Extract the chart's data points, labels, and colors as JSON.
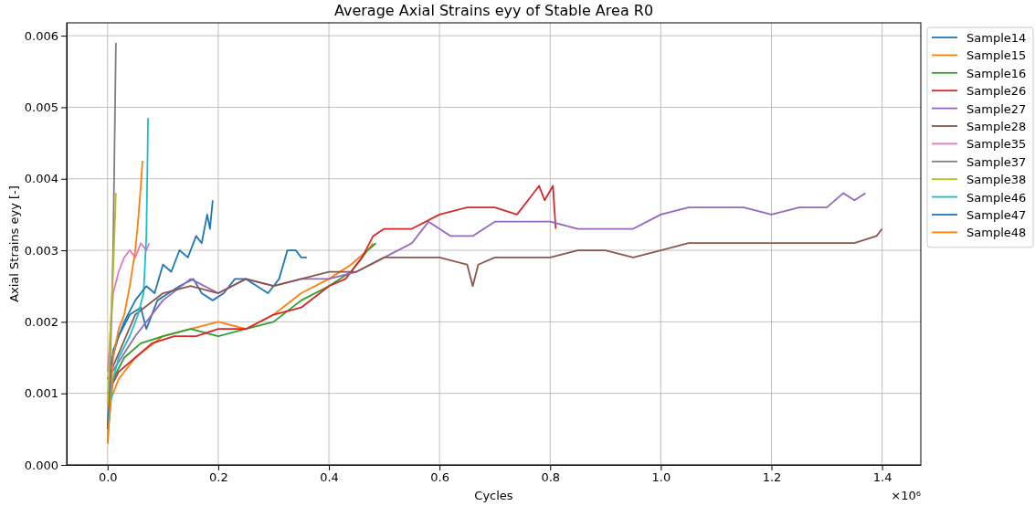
{
  "chart_data": {
    "type": "line",
    "title": "Average Axial Strains eyy of Stable Area R0",
    "xlabel": "Cycles",
    "ylabel": "Axial Strains eyy [-]",
    "annotations": [
      "×10⁶"
    ],
    "xlim": [
      -0.074,
      1.47
    ],
    "xticks": [
      {
        "value": 0,
        "label": "0.0"
      },
      {
        "value": 0.2,
        "label": "0.2"
      },
      {
        "value": 0.4,
        "label": "0.4"
      },
      {
        "value": 0.6,
        "label": "0.6"
      },
      {
        "value": 0.8,
        "label": "0.8"
      },
      {
        "value": 1,
        "label": "1.0"
      },
      {
        "value": 1.2,
        "label": "1.2"
      },
      {
        "value": 1.4,
        "label": "1.4"
      }
    ],
    "ylim": [
      0,
      0.00618
    ],
    "yticks": [
      {
        "value": 0,
        "label": "0.000"
      },
      {
        "value": 0.001,
        "label": "0.001"
      },
      {
        "value": 0.002,
        "label": "0.002"
      },
      {
        "value": 0.003,
        "label": "0.003"
      },
      {
        "value": 0.004,
        "label": "0.004"
      },
      {
        "value": 0.005,
        "label": "0.005"
      },
      {
        "value": 0.006,
        "label": "0.006"
      }
    ],
    "grid": true,
    "legend": "top right",
    "series": [
      {
        "name": "Sample14",
        "color": "#1f77b4",
        "x": [
          0,
          0.005,
          0.02,
          0.04,
          0.06,
          0.07,
          0.09,
          0.11,
          0.13,
          0.155,
          0.17,
          0.19,
          0.21,
          0.23,
          0.25,
          0.27,
          0.29,
          0.31,
          0.325,
          0.34,
          0.35,
          0.36
        ],
        "values": [
          0.0005,
          0.0014,
          0.0018,
          0.0021,
          0.0022,
          0.0019,
          0.0023,
          0.0024,
          0.0025,
          0.0026,
          0.0024,
          0.0023,
          0.0024,
          0.0026,
          0.0026,
          0.0025,
          0.0024,
          0.0026,
          0.003,
          0.003,
          0.0029,
          0.0029
        ]
      },
      {
        "name": "Sample15",
        "color": "#ff7f0e",
        "x": [
          0,
          0.005,
          0.02,
          0.05,
          0.1,
          0.15,
          0.2,
          0.25,
          0.3,
          0.35,
          0.4,
          0.44,
          0.47,
          0.48
        ],
        "values": [
          0.0003,
          0.0009,
          0.0012,
          0.0015,
          0.0018,
          0.0019,
          0.002,
          0.0019,
          0.0021,
          0.0024,
          0.0026,
          0.0028,
          0.003,
          0.0031
        ]
      },
      {
        "name": "Sample16",
        "color": "#2ca02c",
        "x": [
          0,
          0.01,
          0.03,
          0.06,
          0.1,
          0.15,
          0.2,
          0.25,
          0.3,
          0.35,
          0.4,
          0.44,
          0.47,
          0.485
        ],
        "values": [
          0.0008,
          0.0012,
          0.0015,
          0.0017,
          0.0018,
          0.0019,
          0.0018,
          0.0019,
          0.002,
          0.0023,
          0.0025,
          0.0027,
          0.003,
          0.0031
        ]
      },
      {
        "name": "Sample26",
        "color": "#d62728",
        "x": [
          0,
          0.02,
          0.05,
          0.08,
          0.12,
          0.16,
          0.2,
          0.25,
          0.3,
          0.35,
          0.4,
          0.43,
          0.46,
          0.48,
          0.5,
          0.55,
          0.6,
          0.65,
          0.7,
          0.74,
          0.76,
          0.78,
          0.79,
          0.805,
          0.81
        ],
        "values": [
          0.001,
          0.0013,
          0.0015,
          0.0017,
          0.0018,
          0.0018,
          0.0019,
          0.0019,
          0.0021,
          0.0022,
          0.0025,
          0.0026,
          0.0029,
          0.0032,
          0.0033,
          0.0033,
          0.0035,
          0.0036,
          0.0036,
          0.0035,
          0.0037,
          0.0039,
          0.0037,
          0.0039,
          0.0033
        ]
      },
      {
        "name": "Sample27",
        "color": "#9467bd",
        "x": [
          0,
          0.05,
          0.1,
          0.15,
          0.2,
          0.25,
          0.3,
          0.35,
          0.4,
          0.45,
          0.5,
          0.55,
          0.58,
          0.62,
          0.66,
          0.7,
          0.75,
          0.8,
          0.85,
          0.9,
          0.95,
          1,
          1.05,
          1.1,
          1.15,
          1.2,
          1.25,
          1.3,
          1.33,
          1.35,
          1.37
        ],
        "values": [
          0.0012,
          0.0018,
          0.0023,
          0.0026,
          0.0024,
          0.0026,
          0.0025,
          0.0026,
          0.0026,
          0.0027,
          0.0029,
          0.0031,
          0.0034,
          0.0032,
          0.0032,
          0.0034,
          0.0034,
          0.0034,
          0.0033,
          0.0033,
          0.0033,
          0.0035,
          0.0036,
          0.0036,
          0.0036,
          0.0035,
          0.0036,
          0.0036,
          0.0038,
          0.0037,
          0.0038
        ]
      },
      {
        "name": "Sample28",
        "color": "#8c564b",
        "x": [
          0,
          0.05,
          0.1,
          0.15,
          0.2,
          0.25,
          0.3,
          0.35,
          0.4,
          0.45,
          0.5,
          0.55,
          0.6,
          0.65,
          0.66,
          0.67,
          0.7,
          0.75,
          0.8,
          0.85,
          0.9,
          0.95,
          1,
          1.05,
          1.1,
          1.15,
          1.2,
          1.25,
          1.3,
          1.35,
          1.39,
          1.4
        ],
        "values": [
          0.0012,
          0.0021,
          0.0024,
          0.0025,
          0.0024,
          0.0026,
          0.0025,
          0.0026,
          0.0027,
          0.0027,
          0.0029,
          0.0029,
          0.0029,
          0.0028,
          0.0025,
          0.0028,
          0.0029,
          0.0029,
          0.0029,
          0.003,
          0.003,
          0.0029,
          0.003,
          0.0031,
          0.0031,
          0.0031,
          0.0031,
          0.0031,
          0.0031,
          0.0031,
          0.0032,
          0.0033
        ]
      },
      {
        "name": "Sample35",
        "color": "#e377c2",
        "x": [
          0,
          0.01,
          0.02,
          0.03,
          0.04,
          0.05,
          0.06,
          0.07,
          0.075
        ],
        "values": [
          0.0013,
          0.0024,
          0.0027,
          0.0029,
          0.003,
          0.0029,
          0.0031,
          0.003,
          0.0031
        ]
      },
      {
        "name": "Sample37",
        "color": "#7f7f7f",
        "x": [
          0,
          0.005,
          0.01,
          0.015
        ],
        "values": [
          0.0005,
          0.0015,
          0.003,
          0.0059
        ]
      },
      {
        "name": "Sample38",
        "color": "#bcbd22",
        "x": [
          0,
          0.005,
          0.01,
          0.015
        ],
        "values": [
          0.0008,
          0.0019,
          0.0027,
          0.0038
        ]
      },
      {
        "name": "Sample46",
        "color": "#17becf",
        "x": [
          0,
          0.01,
          0.02,
          0.04,
          0.055,
          0.065,
          0.07,
          0.072,
          0.073
        ],
        "values": [
          0.0004,
          0.0012,
          0.0015,
          0.0018,
          0.0021,
          0.0024,
          0.0032,
          0.0042,
          0.00485
        ]
      },
      {
        "name": "Sample47",
        "color": "#1f77b4",
        "x": [
          0,
          0.01,
          0.03,
          0.05,
          0.07,
          0.085,
          0.1,
          0.115,
          0.13,
          0.145,
          0.16,
          0.17,
          0.18,
          0.185,
          0.19
        ],
        "values": [
          0.0005,
          0.0016,
          0.002,
          0.0023,
          0.0025,
          0.0024,
          0.0028,
          0.0027,
          0.003,
          0.0029,
          0.0032,
          0.0031,
          0.0035,
          0.0033,
          0.0037
        ]
      },
      {
        "name": "Sample48",
        "color": "#ff7f0e",
        "x": [
          0,
          0.01,
          0.02,
          0.03,
          0.04,
          0.05,
          0.055,
          0.06,
          0.063
        ],
        "values": [
          0.0003,
          0.0015,
          0.0019,
          0.0021,
          0.0025,
          0.003,
          0.0034,
          0.0039,
          0.00425
        ]
      }
    ]
  }
}
